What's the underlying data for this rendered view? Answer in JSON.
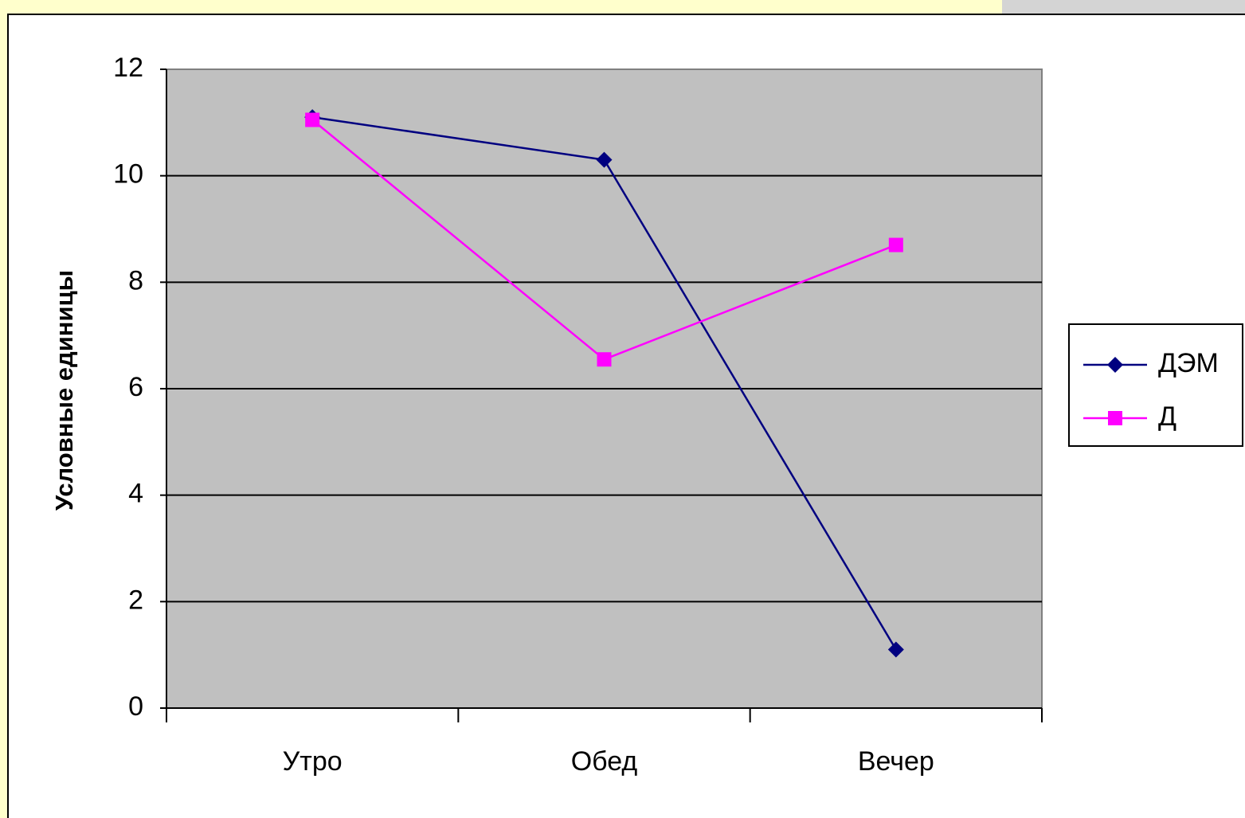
{
  "chart_data": {
    "type": "line",
    "y_label": "Условные единицы",
    "categories": [
      "Утро",
      "Обед",
      "Вечер"
    ],
    "series": [
      {
        "name": "ДЭМ",
        "color": "#000080",
        "marker": "diamond",
        "values": [
          11.1,
          10.3,
          1.1
        ]
      },
      {
        "name": "Д",
        "color": "#ff00ff",
        "marker": "square",
        "values": [
          11.05,
          6.55,
          8.7
        ]
      }
    ],
    "ylim": [
      0,
      12
    ],
    "yticks": [
      0,
      2,
      4,
      6,
      8,
      10,
      12
    ],
    "grid": true,
    "legend": "right"
  }
}
